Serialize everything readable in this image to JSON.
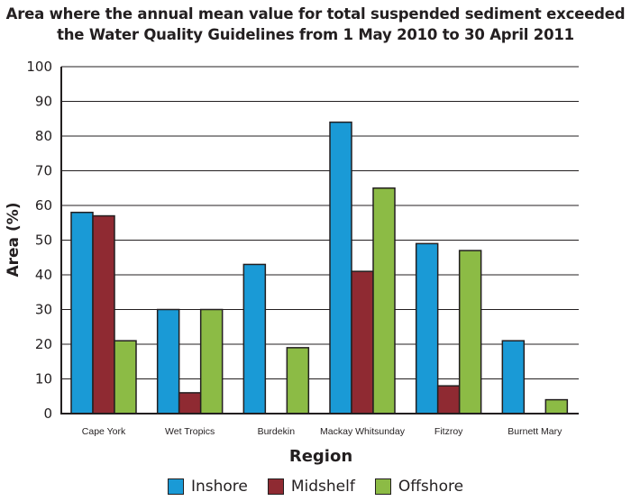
{
  "chart_data": {
    "type": "bar",
    "title_lines": [
      "Area where the annual mean value for total suspended sediment exceeded",
      "the Water Quality Guidelines from 1 May 2010 to 30 April 2011"
    ],
    "xlabel": "Region",
    "ylabel": "Area (%)",
    "ylim": [
      0,
      100
    ],
    "yticks": [
      0,
      10,
      20,
      30,
      40,
      50,
      60,
      70,
      80,
      90,
      100
    ],
    "grid": true,
    "legend_position": "bottom",
    "categories": [
      "Cape York",
      "Wet Tropics",
      "Burdekin",
      "Mackay Whitsunday",
      "Fitzroy",
      "Burnett Mary"
    ],
    "series": [
      {
        "name": "Inshore",
        "color": "#1a9ad6",
        "values": [
          58,
          30,
          43,
          84,
          49,
          21
        ]
      },
      {
        "name": "Midshelf",
        "color": "#8f2a32",
        "values": [
          57,
          6,
          0,
          41,
          8,
          0
        ]
      },
      {
        "name": "Offshore",
        "color": "#8cbb45",
        "values": [
          21,
          30,
          19,
          65,
          47,
          4
        ]
      }
    ]
  }
}
